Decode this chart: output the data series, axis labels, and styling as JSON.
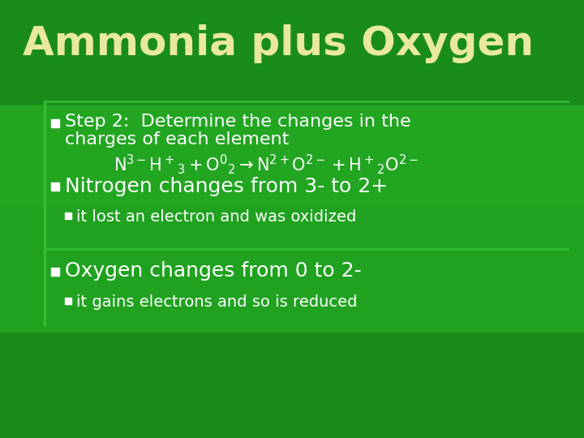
{
  "title": "Ammonia plus Oxygen",
  "title_color": "#e8e8a0",
  "title_fontsize": 36,
  "bg_color": "#1a8c1a",
  "content_bg_top": "#22aa22",
  "content_bg_bottom": "#1a9a1a",
  "white": "#ffffff",
  "cream": "#e8e8a0",
  "line_color": "#33bb33",
  "bullet_sq_color": "#e8e8a0",
  "bullet1_line1": "Step 2:  Determine the changes in the",
  "bullet1_line2": "charges of each element",
  "bullet2_text": "Nitrogen changes from 3- to 2+",
  "sub_bullet1": "it lost an electron and was oxidized",
  "bullet3_text": "Oxygen changes from 0 to 2-",
  "sub_bullet2": "it gains electrons and so is reduced",
  "fig_width": 7.2,
  "fig_height": 5.4,
  "dpi": 100
}
